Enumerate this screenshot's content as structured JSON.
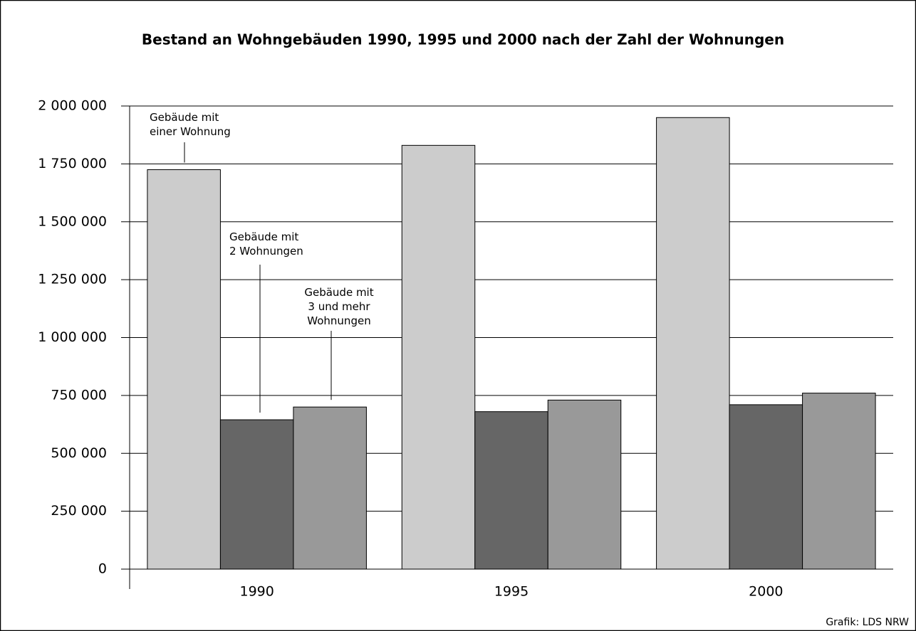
{
  "chart_data": {
    "type": "bar",
    "title": "Bestand an Wohngebäuden 1990, 1995 und 2000 nach der Zahl der Wohnungen",
    "source": "Grafik: LDS NRW",
    "categories": [
      "1990",
      "1995",
      "2000"
    ],
    "series": [
      {
        "name": "Gebäude mit\neiner Wohnung",
        "color": "#cccccc",
        "values": [
          1725000,
          1830000,
          1950000
        ]
      },
      {
        "name": "Gebäude mit\n2 Wohnungen",
        "color": "#666666",
        "values": [
          645000,
          680000,
          710000
        ]
      },
      {
        "name": "Gebäude mit\n3 und mehr\nWohnungen",
        "color": "#999999",
        "values": [
          700000,
          730000,
          760000
        ]
      }
    ],
    "ylim": [
      0,
      2000000
    ],
    "yticks": [
      0,
      {
        "value": 250000,
        "label": "250 000"
      },
      {
        "value": 500000,
        "label": "500 000"
      },
      {
        "value": 750000,
        "label": "750 000"
      },
      {
        "value": 1000000,
        "label": "1 000 000"
      },
      {
        "value": 1250000,
        "label": "1 250 000"
      },
      {
        "value": 1500000,
        "label": "1 500 000"
      },
      {
        "value": 1750000,
        "label": "1 750 000"
      },
      {
        "value": 2000000,
        "label": "2 000 000"
      }
    ],
    "grid": true
  }
}
